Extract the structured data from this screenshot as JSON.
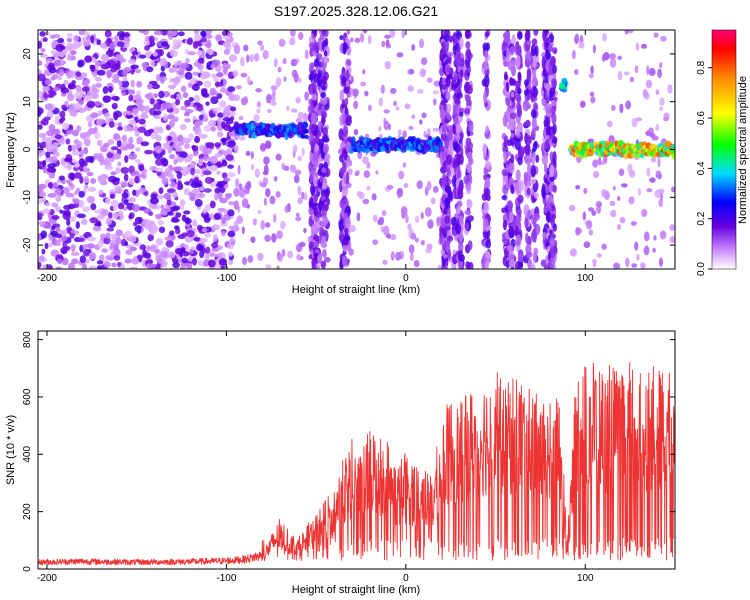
{
  "chart_data": [
    {
      "type": "heatmap",
      "title": "S197.2025.328.12.06.G21",
      "xlabel": "Height of straight line (km)",
      "ylabel": "Frequency (Hz)",
      "xlim": [
        -205,
        150
      ],
      "ylim": [
        -25,
        25
      ],
      "xticks": [
        -200,
        -100,
        0,
        100
      ],
      "yticks": [
        -20,
        -10,
        0,
        10,
        20
      ],
      "colorbar": {
        "label": "Normalized spectral amplitude",
        "range": [
          0,
          0.95
        ],
        "ticks": [
          0.0,
          0.2,
          0.4,
          0.6,
          0.8
        ],
        "tick_labels": [
          "0.0",
          "0.2",
          "0.4",
          "0.6",
          "0.8"
        ]
      },
      "features": [
        {
          "name": "noise field",
          "x_range": [
            -205,
            -95
          ],
          "freq": "full band",
          "amplitude": 0.15
        },
        {
          "name": "signal track",
          "x_range": [
            -95,
            -55
          ],
          "freq_center": 4,
          "amplitude": 0.35
        },
        {
          "name": "signal track",
          "x_range": [
            -32,
            20
          ],
          "freq_center": 1,
          "amplitude": 0.35
        },
        {
          "name": "burst",
          "x": 88,
          "freq_center": 13.5,
          "amplitude": 0.4
        },
        {
          "name": "signal track",
          "x_range": [
            92,
            150
          ],
          "freq_center": 0,
          "amplitude": 0.8
        }
      ]
    },
    {
      "type": "line",
      "title": "",
      "xlabel": "Height of straight line (km)",
      "ylabel": "SNR (10 * v/v)",
      "xlim": [
        -205,
        150
      ],
      "ylim": [
        0,
        830
      ],
      "xticks": [
        -200,
        -100,
        0,
        100
      ],
      "yticks": [
        0,
        200,
        400,
        600,
        800
      ],
      "series": [
        {
          "name": "SNR",
          "color": "#ee3333",
          "x": [
            -205,
            -180,
            -150,
            -120,
            -100,
            -90,
            -80,
            -75,
            -70,
            -65,
            -60,
            -55,
            -50,
            -45,
            -40,
            -35,
            -30,
            -25,
            -20,
            -15,
            -10,
            -5,
            0,
            5,
            10,
            15,
            20,
            25,
            30,
            35,
            40,
            45,
            50,
            55,
            60,
            65,
            70,
            75,
            80,
            85,
            88,
            90,
            95,
            100,
            105,
            110,
            115,
            120,
            125,
            130,
            135,
            140,
            145,
            150
          ],
          "y": [
            25,
            28,
            25,
            27,
            30,
            35,
            50,
            100,
            150,
            110,
            90,
            130,
            160,
            200,
            250,
            320,
            380,
            330,
            420,
            400,
            380,
            300,
            350,
            320,
            300,
            280,
            450,
            500,
            480,
            520,
            540,
            560,
            600,
            520,
            580,
            550,
            520,
            500,
            480,
            540,
            300,
            100,
            580,
            600,
            620,
            580,
            600,
            560,
            610,
            570,
            600,
            580,
            590,
            560
          ]
        }
      ]
    }
  ]
}
